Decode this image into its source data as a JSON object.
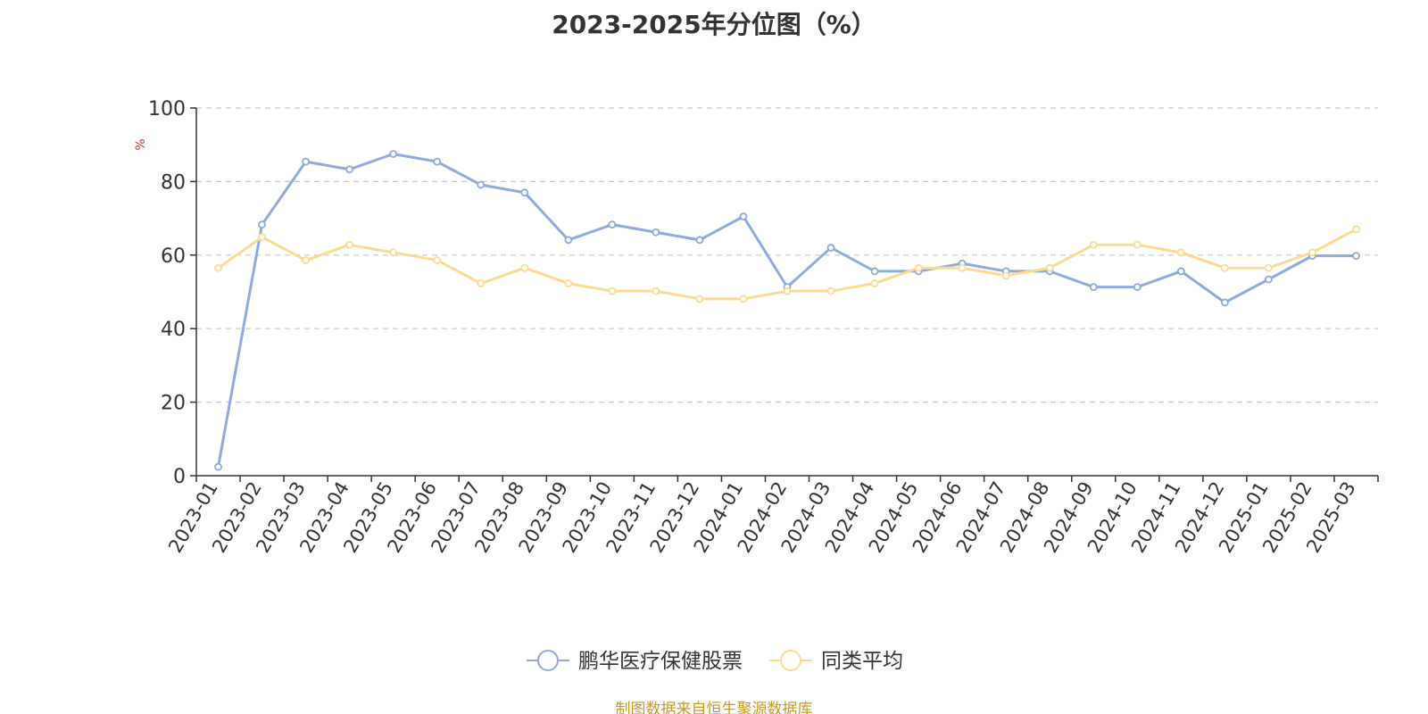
{
  "chart_data": {
    "type": "line",
    "title": "2023-2025年分位图（%）",
    "ylabel": "%",
    "ylim": [
      0,
      100
    ],
    "yticks": [
      0,
      20,
      40,
      60,
      80,
      100
    ],
    "grid": true,
    "legend_position": "bottom-center",
    "categories": [
      "2023-01",
      "2023-02",
      "2023-03",
      "2023-04",
      "2023-05",
      "2023-06",
      "2023-07",
      "2023-08",
      "2023-09",
      "2023-10",
      "2023-11",
      "2023-12",
      "2024-01",
      "2024-02",
      "2024-03",
      "2024-04",
      "2024-05",
      "2024-06",
      "2024-07",
      "2024-08",
      "2024-09",
      "2024-10",
      "2024-11",
      "2024-12",
      "2025-01",
      "2025-02",
      "2025-03"
    ],
    "series": [
      {
        "name": "鹏华医疗保健股票",
        "color": "#8faadc",
        "values": [
          2.4,
          68.3,
          85.4,
          83.3,
          87.5,
          85.4,
          79.1,
          77.0,
          64.1,
          68.3,
          66.2,
          64.1,
          70.5,
          51.3,
          62.0,
          55.6,
          55.6,
          57.7,
          55.6,
          55.6,
          51.3,
          51.3,
          55.6,
          47.1,
          53.4,
          59.8,
          59.8
        ]
      },
      {
        "name": "同类平均",
        "color": "#ffd98f",
        "values": [
          56.5,
          64.9,
          58.6,
          62.8,
          60.7,
          58.6,
          52.3,
          56.5,
          52.3,
          50.2,
          50.2,
          48.1,
          48.1,
          50.2,
          50.2,
          52.3,
          56.5,
          56.5,
          54.4,
          56.5,
          62.8,
          62.8,
          60.7,
          56.5,
          56.5,
          60.7,
          67.0
        ]
      }
    ]
  },
  "source_text": "制图数据来自恒生聚源数据库"
}
